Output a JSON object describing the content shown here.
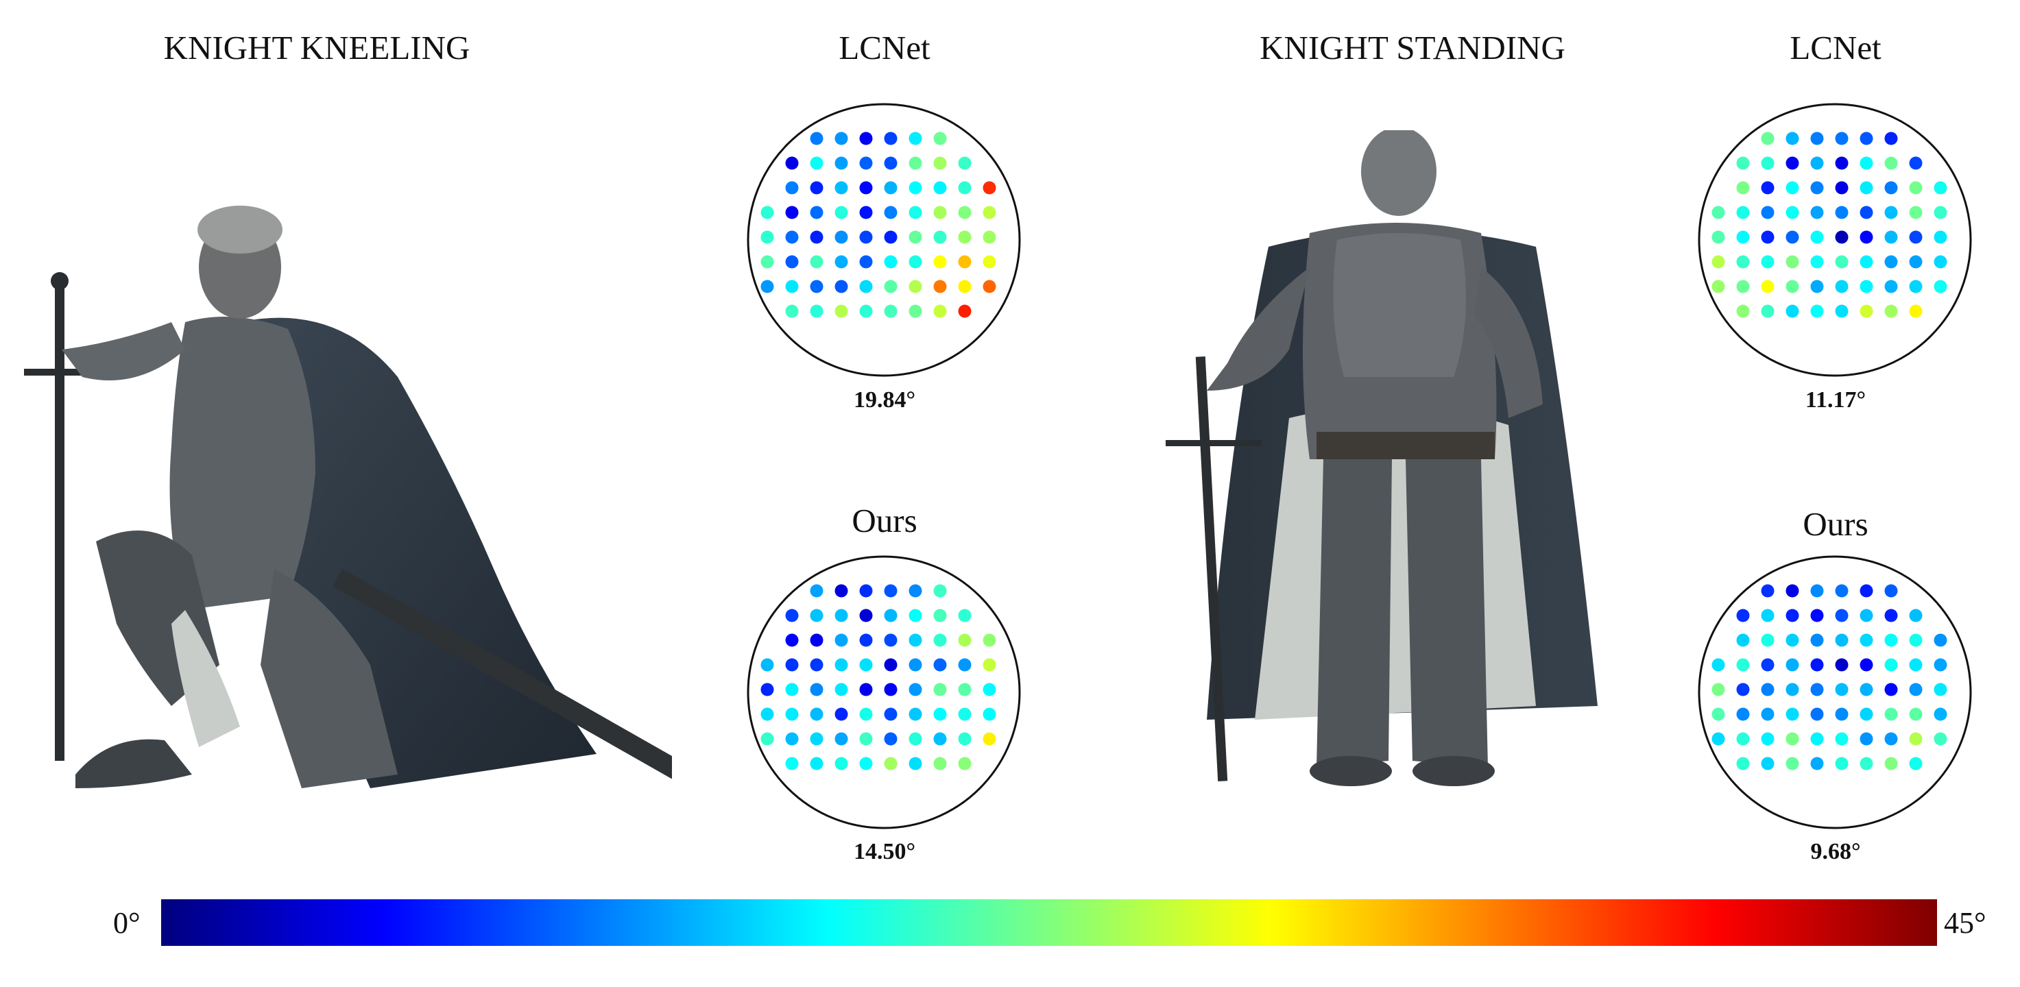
{
  "panels": [
    {
      "title": "KNIGHT KNEELING"
    },
    {
      "title": "KNIGHT STANDING"
    }
  ],
  "methods": [
    {
      "panel": 0,
      "title": "LCNet",
      "error": "19.84°",
      "pattern": 0
    },
    {
      "panel": 0,
      "title": "Ours",
      "error": "14.50°",
      "pattern": 1
    },
    {
      "panel": 1,
      "title": "LCNet",
      "error": "11.17°",
      "pattern": 2
    },
    {
      "panel": 1,
      "title": "Ours",
      "error": "9.68°",
      "pattern": 3
    }
  ],
  "colorbar": {
    "min_label": "0°",
    "max_label": "45°",
    "min": 0,
    "max": 45,
    "colormap": "jet"
  },
  "colors": {
    "jet_stops": [
      "#00007f",
      "#0000ff",
      "#007fff",
      "#00ffff",
      "#7fff7f",
      "#ffff00",
      "#ff7f00",
      "#ff0000",
      "#7f0000"
    ],
    "disk_outline": "#111111",
    "figure_gray": "#5a5f63",
    "cape_dark": "#2f3a44",
    "cape_inner": "#c9cdc9"
  }
}
